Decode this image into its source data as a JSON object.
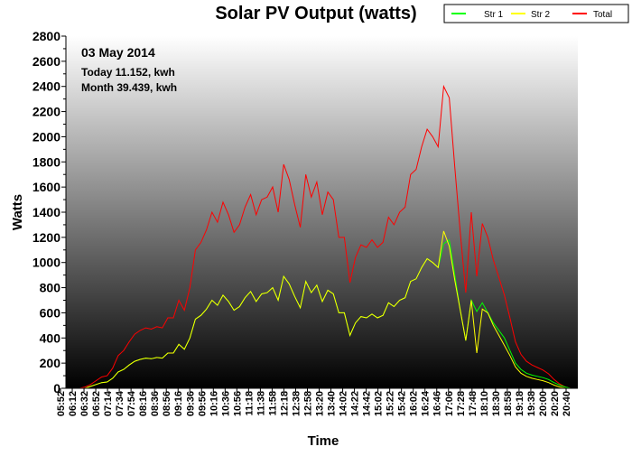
{
  "chart_data": {
    "type": "line",
    "title": "Solar PV Output (watts)",
    "xlabel": "Time",
    "ylabel": "Watts",
    "ylim": [
      0,
      2800
    ],
    "yticks": [
      0,
      200,
      400,
      600,
      800,
      1000,
      1200,
      1400,
      1600,
      1800,
      2000,
      2200,
      2400,
      2600,
      2800
    ],
    "grid": false,
    "background": "vertical gradient, white at top to black at bottom",
    "legend": {
      "placement": "top-right",
      "entries": [
        "Str 1",
        "Str 2",
        "Total"
      ]
    },
    "annotations": {
      "date": "03 May 2014",
      "today": "Today 11.152, kwh",
      "month": "Month 39.439, kwh"
    },
    "xticks": [
      "05:52",
      "06:12",
      "06:32",
      "06:52",
      "07:14",
      "07:34",
      "07:54",
      "08:16",
      "08:36",
      "08:56",
      "09:16",
      "09:36",
      "09:56",
      "10:16",
      "10:36",
      "10:56",
      "11:18",
      "11:38",
      "11:58",
      "12:18",
      "12:38",
      "12:58",
      "13:20",
      "13:40",
      "14:02",
      "14:22",
      "14:42",
      "15:02",
      "15:22",
      "15:42",
      "16:02",
      "16:24",
      "16:46",
      "17:06",
      "17:28",
      "17:48",
      "18:10",
      "18:30",
      "18:58",
      "19:18",
      "19:38",
      "20:00",
      "20:20",
      "20:40"
    ],
    "series": [
      {
        "name": "Str 1",
        "color": "#00ff00",
        "values": [
          0,
          0,
          0,
          15,
          30,
          45,
          50,
          80,
          130,
          150,
          185,
          215,
          230,
          240,
          235,
          245,
          240,
          280,
          280,
          350,
          310,
          400,
          550,
          580,
          630,
          700,
          660,
          740,
          690,
          620,
          650,
          720,
          770,
          690,
          750,
          760,
          800,
          700,
          890,
          830,
          730,
          640,
          850,
          760,
          820,
          690,
          780,
          750,
          600,
          600,
          420,
          520,
          570,
          560,
          590,
          560,
          580,
          680,
          650,
          700,
          720,
          850,
          870,
          960,
          1030,
          1000,
          960,
          1150,
          1180,
          900,
          620,
          380,
          700,
          610,
          680,
          600,
          520,
          460,
          400,
          300,
          200,
          150,
          120,
          105,
          95,
          85,
          70,
          45,
          25,
          10,
          0
        ]
      },
      {
        "name": "Str 2",
        "color": "#ffff00",
        "values": [
          0,
          0,
          0,
          15,
          30,
          45,
          50,
          80,
          130,
          150,
          185,
          215,
          230,
          240,
          235,
          245,
          240,
          280,
          280,
          350,
          310,
          400,
          550,
          580,
          630,
          700,
          660,
          740,
          690,
          620,
          650,
          720,
          770,
          690,
          750,
          760,
          800,
          700,
          890,
          830,
          730,
          640,
          850,
          760,
          820,
          690,
          780,
          750,
          600,
          600,
          420,
          520,
          570,
          560,
          590,
          560,
          580,
          680,
          650,
          700,
          720,
          850,
          870,
          960,
          1030,
          1000,
          960,
          1250,
          1130,
          860,
          620,
          380,
          700,
          280,
          630,
          600,
          500,
          420,
          340,
          260,
          170,
          120,
          95,
          80,
          70,
          60,
          45,
          25,
          10,
          0,
          0
        ]
      },
      {
        "name": "Total",
        "color": "#ff0000",
        "values": [
          0,
          0,
          10,
          30,
          60,
          90,
          100,
          160,
          260,
          300,
          370,
          430,
          460,
          480,
          470,
          490,
          480,
          560,
          560,
          700,
          620,
          800,
          1100,
          1160,
          1260,
          1400,
          1320,
          1480,
          1380,
          1240,
          1300,
          1440,
          1540,
          1380,
          1500,
          1520,
          1600,
          1400,
          1780,
          1660,
          1460,
          1280,
          1700,
          1520,
          1640,
          1380,
          1560,
          1500,
          1200,
          1200,
          840,
          1040,
          1140,
          1120,
          1180,
          1120,
          1160,
          1360,
          1300,
          1400,
          1440,
          1700,
          1740,
          1920,
          2060,
          2000,
          1920,
          2400,
          2310,
          1760,
          1240,
          760,
          1400,
          890,
          1310,
          1200,
          1020,
          880,
          740,
          560,
          370,
          270,
          215,
          185,
          165,
          145,
          115,
          70,
          35,
          10,
          0
        ]
      }
    ]
  }
}
